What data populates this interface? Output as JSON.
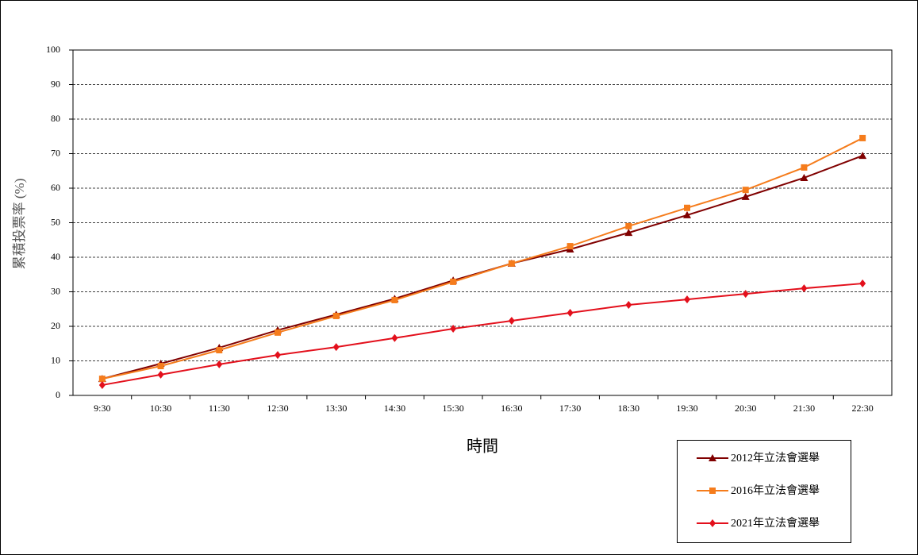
{
  "chart_data": {
    "type": "line",
    "y_label": "累積投票率 (%)",
    "x_label": "時間",
    "categories": [
      "9:30",
      "10:30",
      "11:30",
      "12:30",
      "13:30",
      "14:30",
      "15:30",
      "16:30",
      "17:30",
      "18:30",
      "19:30",
      "20:30",
      "21:30",
      "22:30"
    ],
    "series": [
      {
        "name": "2012年立法會選舉",
        "color": "#800000",
        "marker": "triangle",
        "values": [
          4.8,
          9.2,
          13.8,
          18.9,
          23.4,
          28.0,
          33.3,
          38.2,
          42.3,
          47.1,
          52.2,
          57.5,
          63.0,
          69.4
        ]
      },
      {
        "name": "2016年立法會選舉",
        "color": "#f57c1c",
        "marker": "square",
        "values": [
          4.8,
          8.5,
          13.1,
          18.2,
          23.0,
          27.6,
          32.9,
          38.2,
          43.2,
          49.0,
          54.3,
          59.5,
          66.0,
          74.5
        ]
      },
      {
        "name": "2021年立法會選舉",
        "color": "#e3101c",
        "marker": "diamond",
        "values": [
          3.0,
          6.0,
          9.0,
          11.7,
          14.0,
          16.6,
          19.3,
          21.6,
          23.9,
          26.2,
          27.8,
          29.4,
          31.0,
          32.4
        ]
      }
    ],
    "ylim": [
      0,
      100
    ],
    "yticks": [
      0,
      10,
      20,
      30,
      40,
      50,
      60,
      70,
      80,
      90,
      100
    ],
    "grid": true
  }
}
